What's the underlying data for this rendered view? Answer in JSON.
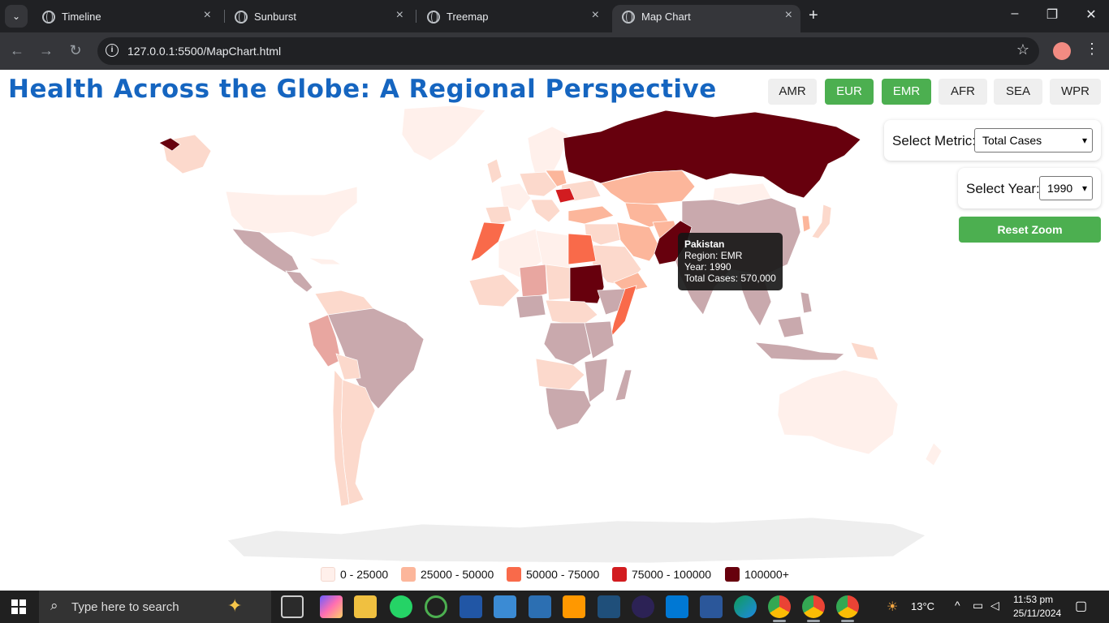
{
  "browser": {
    "tabs": [
      {
        "label": "Timeline",
        "active": false
      },
      {
        "label": "Sunburst",
        "active": false
      },
      {
        "label": "Treemap",
        "active": false
      },
      {
        "label": "Map Chart",
        "active": true
      }
    ],
    "url": "127.0.0.1:5500/MapChart.html"
  },
  "page": {
    "title": "Health Across the Globe: A Regional Perspective",
    "regions": [
      {
        "label": "AMR",
        "selected": false
      },
      {
        "label": "EUR",
        "selected": true
      },
      {
        "label": "EMR",
        "selected": true
      },
      {
        "label": "AFR",
        "selected": false
      },
      {
        "label": "SEA",
        "selected": false
      },
      {
        "label": "WPR",
        "selected": false
      }
    ],
    "metric_label": "Select Metric:",
    "metric_value": "Total Cases",
    "year_label": "Select Year:",
    "year_value": "1990",
    "reset_label": "Reset Zoom"
  },
  "tooltip": {
    "country": "Pakistan",
    "region": "Region: EMR",
    "year": "Year: 1990",
    "cases": "Total Cases: 570,000"
  },
  "chart_data": {
    "type": "choropleth",
    "title": "Health Across the Globe: A Regional Perspective",
    "metric": "Total Cases",
    "year": 1990,
    "legend": [
      {
        "label": "0 - 25000",
        "color": "#fff0eb"
      },
      {
        "label": "25000 - 50000",
        "color": "#fcb69b"
      },
      {
        "label": "50000 - 75000",
        "color": "#f96a4a"
      },
      {
        "label": "75000 - 100000",
        "color": "#d21c20"
      },
      {
        "label": "100000+",
        "color": "#67000d"
      }
    ],
    "highlighted": {
      "country": "Pakistan",
      "region": "EMR",
      "year": 1990,
      "total_cases": 570000
    }
  },
  "taskbar": {
    "search_placeholder": "Type here to search",
    "weather": "13°C",
    "time": "11:53 pm",
    "date": "25/11/2024"
  },
  "colors": {
    "accent_green": "#4caf50",
    "title_blue": "#1565c0",
    "muted_region": "#c9a9ad"
  }
}
